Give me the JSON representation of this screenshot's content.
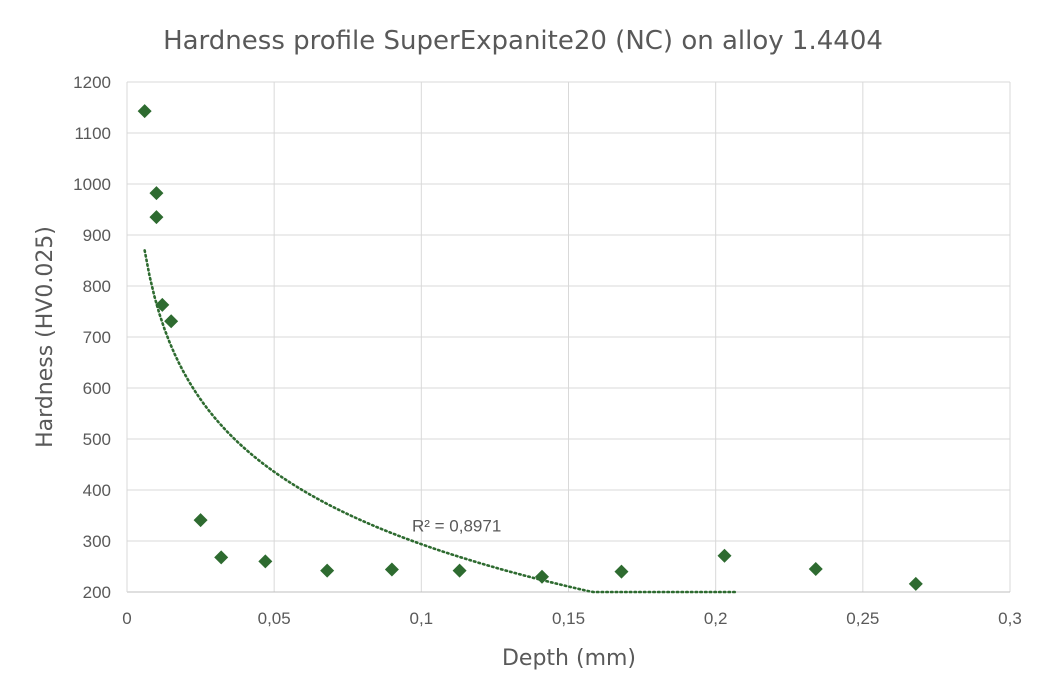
{
  "chart_data": {
    "type": "scatter",
    "title": "Hardness profile SuperExpanite20 (NC) on alloy 1.4404",
    "xlabel": "Depth (mm)",
    "ylabel": "Hardness (HV0.025)",
    "xlim": [
      0,
      0.3
    ],
    "ylim": [
      200,
      1200
    ],
    "x_ticks": [
      0,
      0.05,
      0.1,
      0.15,
      0.2,
      0.25,
      0.3
    ],
    "x_tick_labels": [
      "0",
      "0,05",
      "0,1",
      "0,15",
      "0,2",
      "0,25",
      "0,3"
    ],
    "y_ticks": [
      200,
      300,
      400,
      500,
      600,
      700,
      800,
      900,
      1000,
      1100,
      1200
    ],
    "y_tick_labels": [
      "200",
      "300",
      "400",
      "500",
      "600",
      "700",
      "800",
      "900",
      "1000",
      "1100",
      "1200"
    ],
    "grid": true,
    "legend": "none",
    "marker_color": "#2e6b30",
    "trendline_color": "#2e6b30",
    "series": [
      {
        "marker": "diamond",
        "points": [
          {
            "x": 0.006,
            "y": 1143
          },
          {
            "x": 0.01,
            "y": 982
          },
          {
            "x": 0.01,
            "y": 935
          },
          {
            "x": 0.012,
            "y": 763
          },
          {
            "x": 0.015,
            "y": 731
          },
          {
            "x": 0.025,
            "y": 341
          },
          {
            "x": 0.032,
            "y": 268
          },
          {
            "x": 0.047,
            "y": 260
          },
          {
            "x": 0.068,
            "y": 242
          },
          {
            "x": 0.09,
            "y": 244
          },
          {
            "x": 0.113,
            "y": 242
          },
          {
            "x": 0.141,
            "y": 230
          },
          {
            "x": 0.168,
            "y": 240
          },
          {
            "x": 0.203,
            "y": 271
          },
          {
            "x": 0.234,
            "y": 245
          },
          {
            "x": 0.268,
            "y": 216
          }
        ]
      }
    ],
    "trendline": {
      "type": "logarithmic",
      "x_range": [
        0.006,
        0.207
      ],
      "points": [
        {
          "x": 0.006,
          "y": 940
        },
        {
          "x": 0.03,
          "y": 460
        },
        {
          "x": 0.05,
          "y": 365
        },
        {
          "x": 0.1,
          "y": 290
        },
        {
          "x": 0.15,
          "y": 240
        },
        {
          "x": 0.207,
          "y": 200
        }
      ]
    },
    "annotations": [
      {
        "text": "R² = 0,8971",
        "x": 0.112,
        "y": 330
      }
    ]
  }
}
